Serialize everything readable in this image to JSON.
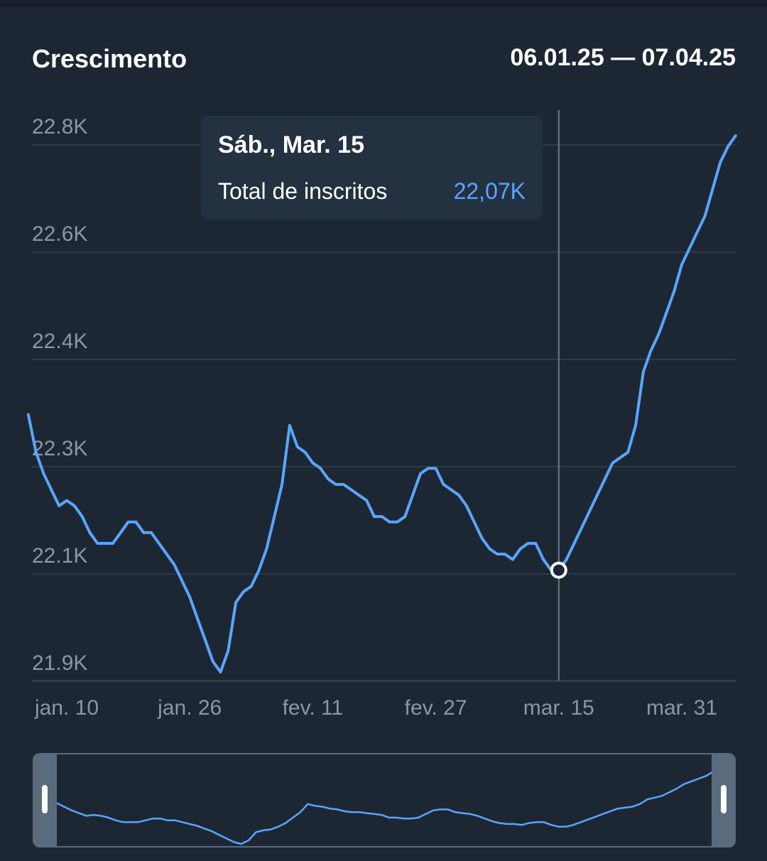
{
  "header": {
    "title": "Crescimento",
    "date_range": "06.01.25 — 07.04.25"
  },
  "tooltip": {
    "date": "Sáb., Mar. 15",
    "label": "Total de inscritos",
    "value": "22,07K"
  },
  "colors": {
    "background": "#1d2733",
    "line": "#58a6ff",
    "grid": "#34404d",
    "axis_text": "#8c97a3",
    "tooltip_bg": "#243141"
  },
  "chart_data": {
    "type": "line",
    "title": "Crescimento",
    "xlabel": "",
    "ylabel": "",
    "y_ticks": [
      {
        "value": 21.9,
        "label": "21.9K"
      },
      {
        "value": 22.1,
        "label": "22.1K"
      },
      {
        "value": 22.3,
        "label": "22.3K"
      },
      {
        "value": 22.4,
        "label": "22.4K"
      },
      {
        "value": 22.6,
        "label": "22.6K"
      },
      {
        "value": 22.8,
        "label": "22.8K"
      }
    ],
    "x_ticks": [
      {
        "day": 10,
        "label": "jan. 10"
      },
      {
        "day": 26,
        "label": "jan. 26"
      },
      {
        "day": 42,
        "label": "fev. 11"
      },
      {
        "day": 58,
        "label": "fev. 27"
      },
      {
        "day": 74,
        "label": "mar. 15"
      },
      {
        "day": 90,
        "label": "mar. 31"
      }
    ],
    "grid": true,
    "selected_day": 74,
    "series": [
      {
        "name": "Total de inscritos",
        "unit": "K",
        "x_start": 5,
        "values": [
          22.33,
          22.29,
          22.25,
          22.22,
          22.19,
          22.2,
          22.19,
          22.17,
          22.14,
          22.12,
          22.12,
          22.12,
          22.14,
          22.16,
          22.16,
          22.14,
          22.14,
          22.12,
          22.1,
          22.08,
          22.05,
          22.02,
          21.98,
          21.94,
          21.9,
          21.88,
          21.92,
          22.01,
          22.03,
          22.04,
          22.07,
          22.11,
          22.17,
          22.23,
          22.32,
          22.3,
          22.29,
          22.27,
          22.26,
          22.24,
          22.23,
          22.23,
          22.22,
          22.21,
          22.2,
          22.17,
          22.17,
          22.16,
          22.16,
          22.17,
          22.21,
          22.25,
          22.26,
          22.26,
          22.23,
          22.22,
          22.21,
          22.19,
          22.16,
          22.13,
          22.11,
          22.1,
          22.1,
          22.09,
          22.11,
          22.12,
          22.12,
          22.09,
          22.07,
          22.07,
          22.09,
          22.12,
          22.15,
          22.18,
          22.21,
          22.24,
          22.27,
          22.28,
          22.29,
          22.32,
          22.37,
          22.39,
          22.41,
          22.45,
          22.49,
          22.54,
          22.57,
          22.6,
          22.63,
          22.68,
          22.73,
          22.76,
          22.78
        ]
      }
    ],
    "navigator": {
      "visible_range": "full"
    }
  }
}
